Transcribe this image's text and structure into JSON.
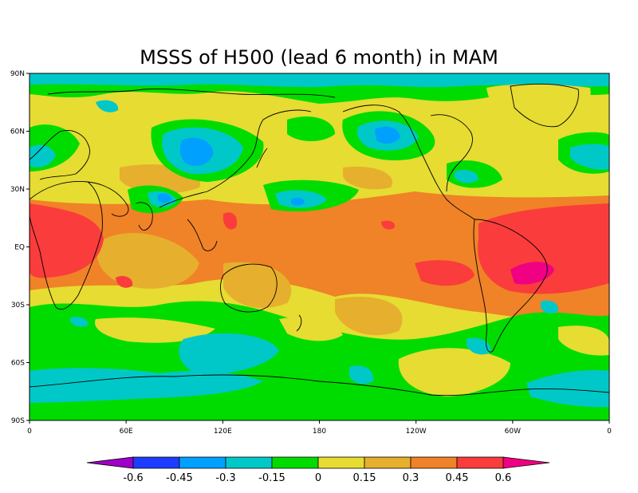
{
  "title": "MSSS of H500 (lead 6 month) in MAM",
  "map": {
    "projection": "equirectangular",
    "lon_range": [
      0,
      360
    ],
    "lat_range": [
      -90,
      90
    ],
    "y_ticks": [
      "90N",
      "60N",
      "30N",
      "EQ",
      "30S",
      "60S",
      "90S"
    ],
    "x_ticks": [
      "0",
      "60E",
      "120E",
      "180",
      "120W",
      "60W",
      "0"
    ]
  },
  "colorbar": {
    "labels": [
      "-0.6",
      "-0.45",
      "-0.3",
      "-0.15",
      "0",
      "0.15",
      "0.3",
      "0.45",
      "0.6"
    ],
    "colors": [
      "#a000c8",
      "#1e3cff",
      "#00a0ff",
      "#00c8c8",
      "#00dc00",
      "#e6dc32",
      "#e6af2d",
      "#f08228",
      "#fa3c3c",
      "#f00082"
    ]
  }
}
